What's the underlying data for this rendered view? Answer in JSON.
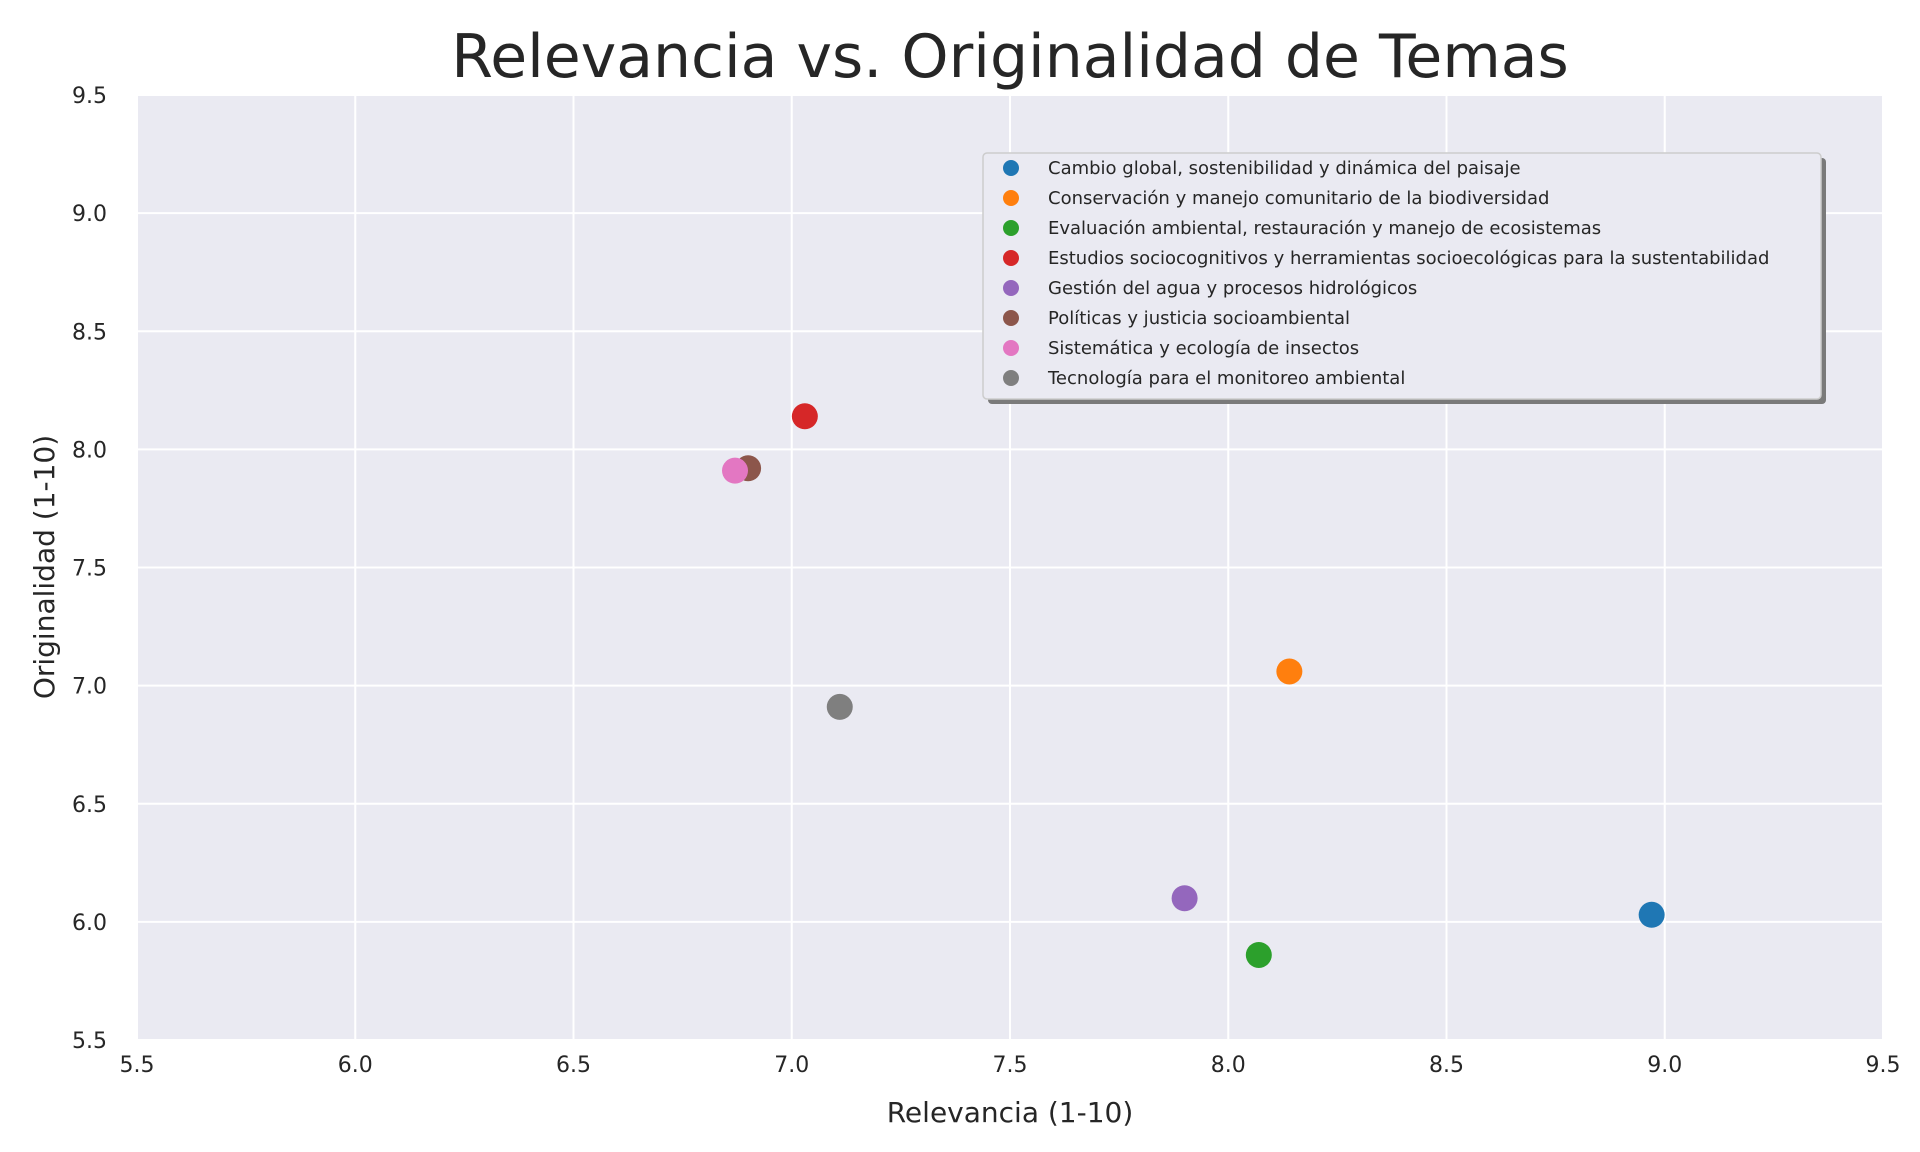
{
  "chart_data": {
    "type": "scatter",
    "title": "Relevancia vs. Originalidad de Temas",
    "xlabel": "Relevancia (1-10)",
    "ylabel": "Originalidad (1-10)",
    "xlim": [
      5.5,
      9.5
    ],
    "ylim": [
      5.5,
      9.5
    ],
    "xticks": [
      "5.5",
      "6.0",
      "6.5",
      "7.0",
      "7.5",
      "8.0",
      "8.5",
      "9.0",
      "9.5"
    ],
    "yticks": [
      "5.5",
      "6.0",
      "6.5",
      "7.0",
      "7.5",
      "8.0",
      "8.5",
      "9.0",
      "9.5"
    ],
    "grid": true,
    "legend_position": "top-right",
    "background": "#eaeaf2",
    "series": [
      {
        "name": "Cambio global, sostenibilidad y dinámica del paisaje",
        "color": "#1f77b4",
        "x": 8.97,
        "y": 6.03
      },
      {
        "name": "Conservación y manejo comunitario de la biodiversidad",
        "color": "#ff7f0e",
        "x": 8.14,
        "y": 7.06
      },
      {
        "name": "Evaluación ambiental, restauración y manejo de ecosistemas",
        "color": "#2ca02c",
        "x": 8.07,
        "y": 5.86
      },
      {
        "name": "Estudios sociocognitivos y herramientas socioecológicas para la sustentabilidad",
        "color": "#d62728",
        "x": 7.03,
        "y": 8.14
      },
      {
        "name": "Gestión del agua y procesos hidrológicos",
        "color": "#9467bd",
        "x": 7.9,
        "y": 6.1
      },
      {
        "name": "Políticas y justicia socioambiental",
        "color": "#8c564b",
        "x": 6.9,
        "y": 7.92
      },
      {
        "name": "Sistemática y ecología de insectos",
        "color": "#e377c2",
        "x": 6.87,
        "y": 7.91
      },
      {
        "name": "Tecnología para el monitoreo ambiental",
        "color": "#7f7f7f",
        "x": 7.11,
        "y": 6.91
      }
    ]
  }
}
